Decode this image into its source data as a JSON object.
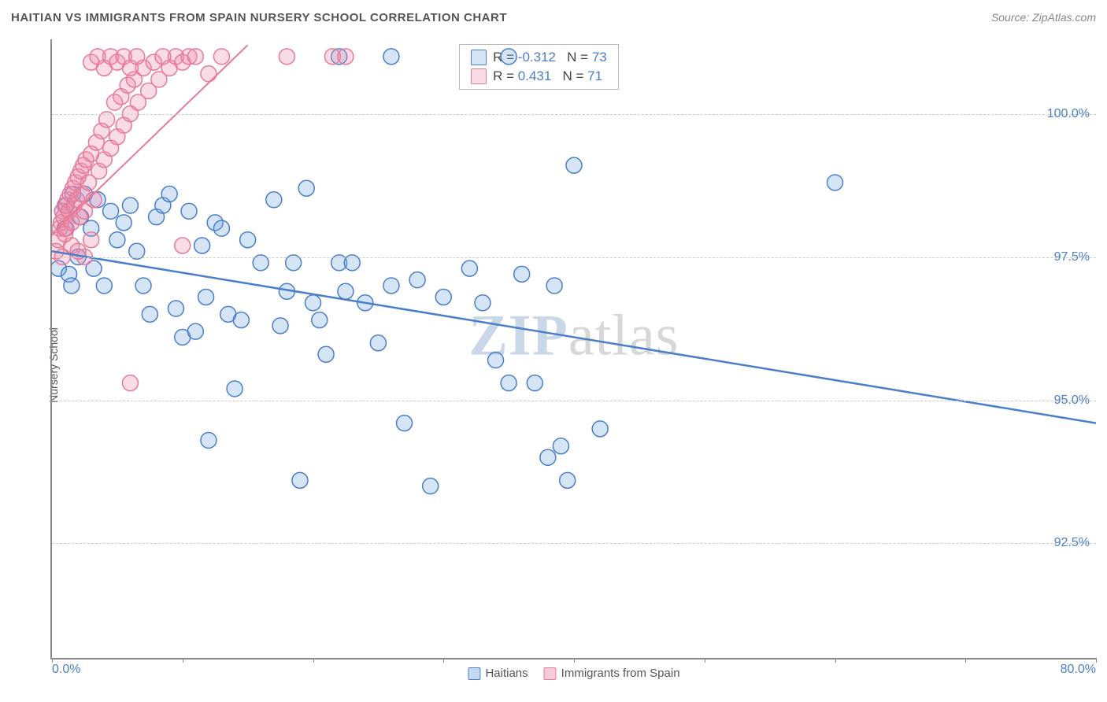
{
  "title": "HAITIAN VS IMMIGRANTS FROM SPAIN NURSERY SCHOOL CORRELATION CHART",
  "source": "Source: ZipAtlas.com",
  "y_label": "Nursery School",
  "watermark": {
    "part1": "ZIP",
    "part2": "atlas"
  },
  "chart": {
    "type": "scatter",
    "background_color": "#ffffff",
    "axis_color": "#888888",
    "grid_color": "#cccccc",
    "tick_label_color": "#4a7ec9",
    "tick_fontsize": 16,
    "title_fontsize": 15,
    "label_fontsize": 14,
    "xlim": [
      0,
      80
    ],
    "ylim": [
      90.5,
      101.3
    ],
    "x_ticks": [
      0,
      10,
      20,
      30,
      40,
      50,
      60,
      70,
      80
    ],
    "x_tick_labels_shown": {
      "min": "0.0%",
      "max": "80.0%"
    },
    "y_ticks": [
      92.5,
      95.0,
      97.5,
      100.0
    ],
    "y_tick_labels": [
      "92.5%",
      "95.0%",
      "97.5%",
      "100.0%"
    ],
    "marker": {
      "shape": "circle",
      "radius": 10,
      "stroke_width": 1.5,
      "fill_opacity": 0.25
    },
    "series": [
      {
        "name": "Haitians",
        "color": "#4a7ec9",
        "fill": "rgba(120,170,225,0.3)",
        "stroke": "#4a7ec9",
        "R": -0.312,
        "N": 73,
        "trendline": {
          "x1": 0,
          "y1": 97.6,
          "x2": 80,
          "y2": 94.6,
          "width": 2.5
        },
        "points": [
          [
            0.5,
            97.3
          ],
          [
            0.8,
            98.3
          ],
          [
            1.0,
            98.0
          ],
          [
            1.1,
            98.4
          ],
          [
            1.3,
            97.2
          ],
          [
            1.5,
            97.0
          ],
          [
            1.6,
            98.6
          ],
          [
            2.0,
            97.5
          ],
          [
            2.2,
            98.2
          ],
          [
            2.5,
            98.6
          ],
          [
            3.0,
            98.0
          ],
          [
            3.2,
            97.3
          ],
          [
            3.5,
            98.5
          ],
          [
            4.0,
            97.0
          ],
          [
            4.5,
            98.3
          ],
          [
            5.0,
            97.8
          ],
          [
            5.5,
            98.1
          ],
          [
            6.0,
            98.4
          ],
          [
            6.5,
            97.6
          ],
          [
            7.0,
            97.0
          ],
          [
            7.5,
            96.5
          ],
          [
            8.0,
            98.2
          ],
          [
            8.5,
            98.4
          ],
          [
            9.0,
            98.6
          ],
          [
            9.5,
            96.6
          ],
          [
            10.0,
            96.1
          ],
          [
            10.5,
            98.3
          ],
          [
            11.0,
            96.2
          ],
          [
            11.5,
            97.7
          ],
          [
            11.8,
            96.8
          ],
          [
            12.0,
            94.3
          ],
          [
            12.5,
            98.1
          ],
          [
            13.0,
            98.0
          ],
          [
            13.5,
            96.5
          ],
          [
            14.0,
            95.2
          ],
          [
            14.5,
            96.4
          ],
          [
            15.0,
            97.8
          ],
          [
            16.0,
            97.4
          ],
          [
            17.0,
            98.5
          ],
          [
            17.5,
            96.3
          ],
          [
            18.0,
            96.9
          ],
          [
            18.5,
            97.4
          ],
          [
            19.0,
            93.6
          ],
          [
            19.5,
            98.7
          ],
          [
            20.0,
            96.7
          ],
          [
            20.5,
            96.4
          ],
          [
            21.0,
            95.8
          ],
          [
            22.0,
            97.4
          ],
          [
            22.5,
            96.9
          ],
          [
            23.0,
            97.4
          ],
          [
            24.0,
            96.7
          ],
          [
            25.0,
            96.0
          ],
          [
            26.0,
            97.0
          ],
          [
            27.0,
            94.6
          ],
          [
            28.0,
            97.1
          ],
          [
            29.0,
            93.5
          ],
          [
            30.0,
            96.8
          ],
          [
            32.0,
            97.3
          ],
          [
            33.0,
            96.7
          ],
          [
            34.0,
            95.7
          ],
          [
            35.0,
            95.3
          ],
          [
            36.0,
            97.2
          ],
          [
            37.0,
            95.3
          ],
          [
            38.0,
            94.0
          ],
          [
            38.5,
            97.0
          ],
          [
            39.0,
            94.2
          ],
          [
            39.5,
            93.6
          ],
          [
            40.0,
            99.1
          ],
          [
            42.0,
            94.5
          ],
          [
            60.0,
            98.8
          ],
          [
            35.0,
            101.0
          ],
          [
            26.0,
            101.0
          ],
          [
            22.0,
            101.0
          ]
        ]
      },
      {
        "name": "Immigrants from Spain",
        "color": "#e67a99",
        "fill": "rgba(240,140,170,0.3)",
        "stroke": "#e67a99",
        "R": 0.431,
        "N": 71,
        "trendline": {
          "x1": 0,
          "y1": 97.9,
          "x2": 15,
          "y2": 101.2,
          "width": 2
        },
        "points": [
          [
            0.3,
            97.6
          ],
          [
            0.5,
            97.8
          ],
          [
            0.6,
            98.0
          ],
          [
            0.7,
            98.1
          ],
          [
            0.8,
            98.3
          ],
          [
            0.9,
            98.2
          ],
          [
            1.0,
            98.4
          ],
          [
            1.1,
            98.0
          ],
          [
            1.2,
            98.5
          ],
          [
            1.3,
            98.3
          ],
          [
            1.4,
            98.6
          ],
          [
            1.5,
            98.1
          ],
          [
            1.6,
            98.7
          ],
          [
            1.7,
            98.4
          ],
          [
            1.8,
            98.8
          ],
          [
            1.9,
            98.5
          ],
          [
            2.0,
            98.9
          ],
          [
            2.1,
            98.2
          ],
          [
            2.2,
            99.0
          ],
          [
            2.3,
            98.6
          ],
          [
            2.4,
            99.1
          ],
          [
            2.5,
            98.3
          ],
          [
            2.6,
            99.2
          ],
          [
            2.8,
            98.8
          ],
          [
            3.0,
            99.3
          ],
          [
            3.2,
            98.5
          ],
          [
            3.4,
            99.5
          ],
          [
            3.6,
            99.0
          ],
          [
            3.8,
            99.7
          ],
          [
            4.0,
            99.2
          ],
          [
            4.2,
            99.9
          ],
          [
            4.5,
            99.4
          ],
          [
            4.8,
            100.2
          ],
          [
            5.0,
            99.6
          ],
          [
            5.3,
            100.3
          ],
          [
            5.5,
            99.8
          ],
          [
            5.8,
            100.5
          ],
          [
            6.0,
            100.0
          ],
          [
            6.3,
            100.6
          ],
          [
            6.6,
            100.2
          ],
          [
            7.0,
            100.8
          ],
          [
            7.4,
            100.4
          ],
          [
            7.8,
            100.9
          ],
          [
            8.2,
            100.6
          ],
          [
            8.5,
            101.0
          ],
          [
            9.0,
            100.8
          ],
          [
            9.5,
            101.0
          ],
          [
            10.0,
            100.9
          ],
          [
            10.5,
            101.0
          ],
          [
            11.0,
            101.0
          ],
          [
            12.0,
            100.7
          ],
          [
            13.0,
            101.0
          ],
          [
            3.0,
            100.9
          ],
          [
            3.5,
            101.0
          ],
          [
            4.0,
            100.8
          ],
          [
            4.5,
            101.0
          ],
          [
            5.0,
            100.9
          ],
          [
            5.5,
            101.0
          ],
          [
            6.0,
            100.8
          ],
          [
            6.5,
            101.0
          ],
          [
            18.0,
            101.0
          ],
          [
            21.5,
            101.0
          ],
          [
            22.5,
            101.0
          ],
          [
            6.0,
            95.3
          ],
          [
            2.5,
            97.5
          ],
          [
            3.0,
            97.8
          ],
          [
            1.5,
            97.7
          ],
          [
            10.0,
            97.7
          ],
          [
            2.0,
            97.6
          ],
          [
            1.0,
            97.9
          ],
          [
            0.8,
            97.5
          ]
        ]
      }
    ],
    "bottom_legend": [
      {
        "label": "Haitians",
        "fill": "rgba(120,170,225,0.45)",
        "stroke": "#4a7ec9"
      },
      {
        "label": "Immigrants from Spain",
        "fill": "rgba(240,140,170,0.45)",
        "stroke": "#e67a99"
      }
    ]
  }
}
